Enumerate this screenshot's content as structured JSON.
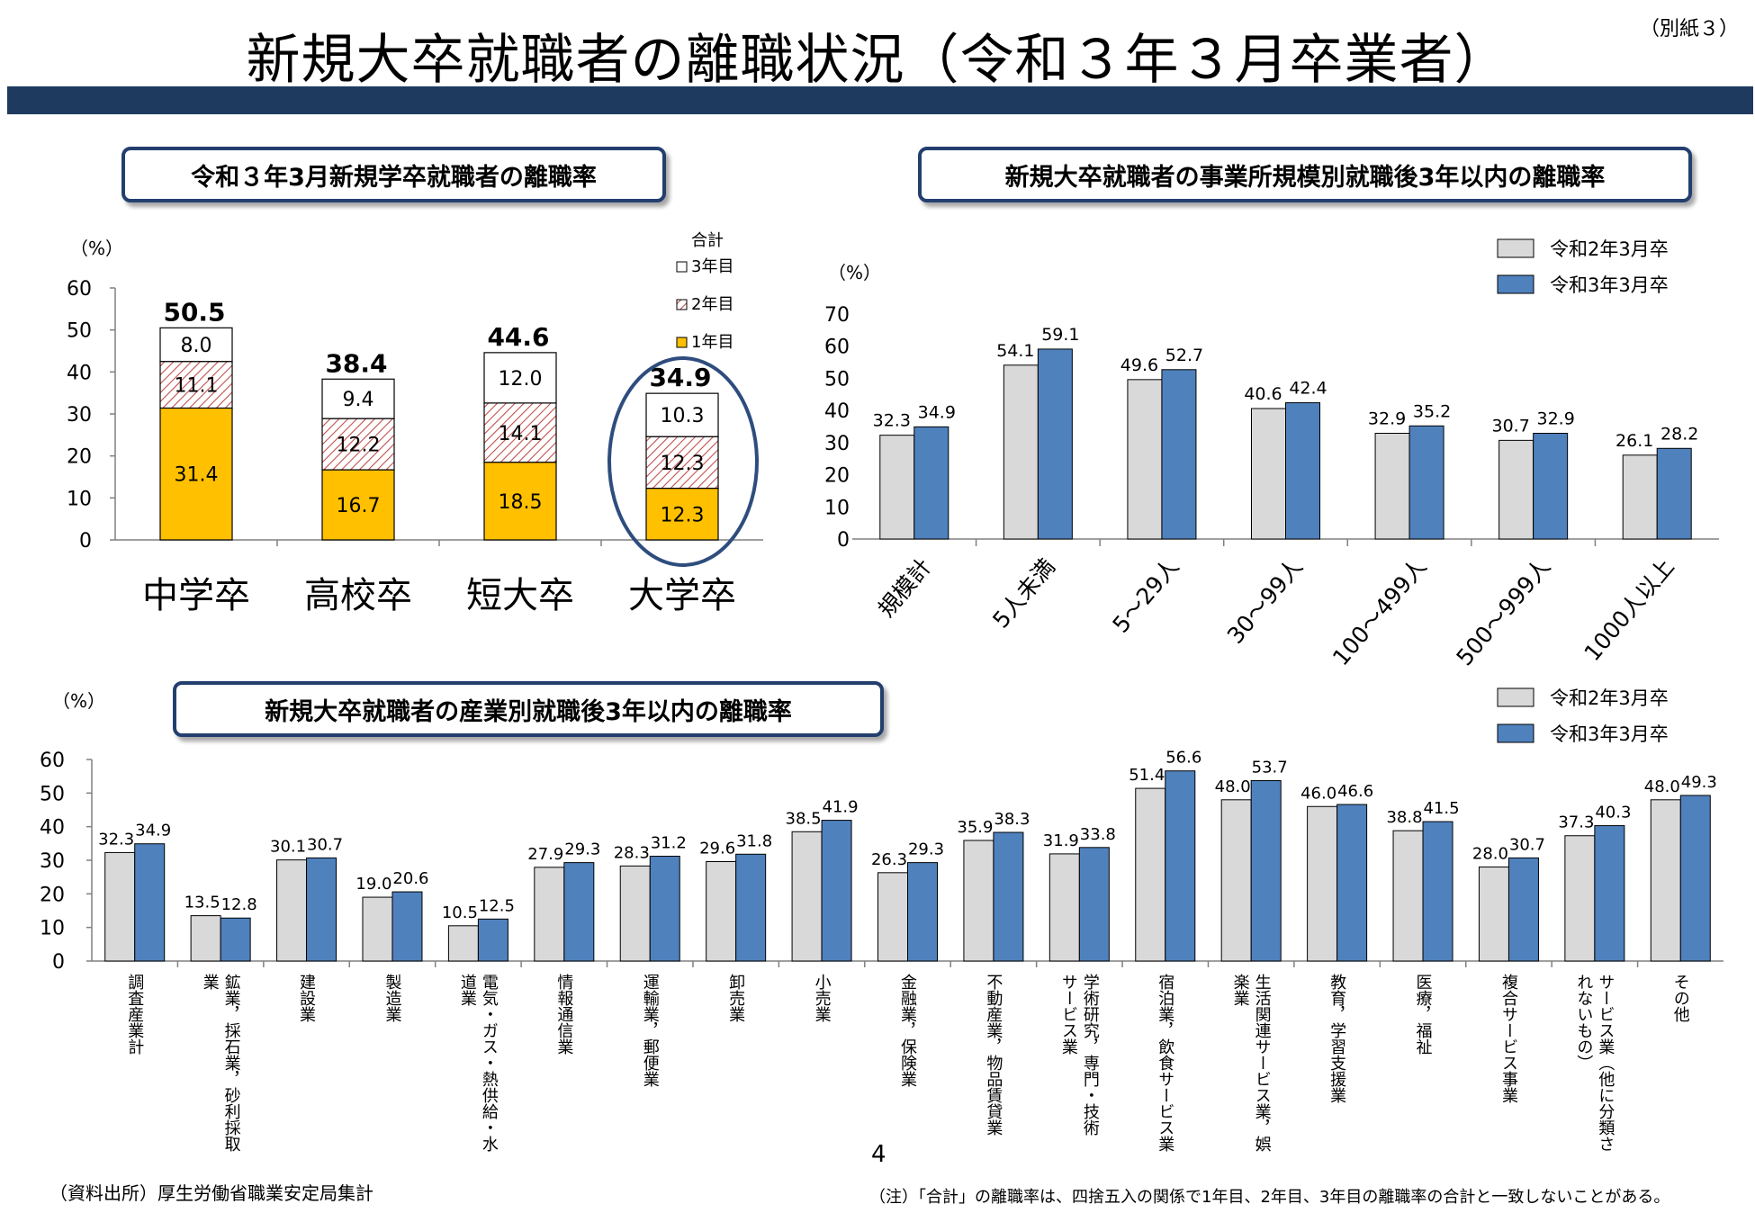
{
  "page": {
    "title": "新規大卒就職者の離職状況（令和３年３月卒業者）",
    "attachment_label": "（別紙３）",
    "page_number": "4",
    "source": "（資料出所）厚生労働省職業安定局集計",
    "note": "（注）「合計」の離職率は、四捨五入の関係で1年目、2年目、3年目の離職率の合計と一致しないことがある。"
  },
  "colors": {
    "header_bar": "#1f3a5f",
    "box_border": "#233f6e",
    "year1": "#FFC000",
    "year2_hatch": "#C0504D",
    "r2": "#D9D9D9",
    "r3": "#4F81BD",
    "highlight": "#2E4D7E"
  },
  "chart_data": [
    {
      "type": "bar",
      "stacked": true,
      "title": "令和３年3月新規学卒就職者の離職率",
      "ylabel": "（%）",
      "ylim": [
        0,
        60
      ],
      "yticks": [
        "0",
        "10",
        "20",
        "30",
        "40",
        "50",
        "60"
      ],
      "categories": [
        "中学卒",
        "高校卒",
        "短大卒",
        "大学卒"
      ],
      "legend_title": "合計",
      "series": [
        {
          "name": "1年目",
          "values": [
            31.4,
            16.7,
            18.5,
            12.3
          ]
        },
        {
          "name": "2年目",
          "values": [
            11.1,
            12.2,
            14.1,
            12.3
          ]
        },
        {
          "name": "3年目",
          "values": [
            8.0,
            9.4,
            12.0,
            10.3
          ]
        }
      ],
      "totals": [
        50.5,
        38.4,
        44.6,
        34.9
      ],
      "labels": {
        "y1": [
          "31.4",
          "16.7",
          "18.5",
          "12.3"
        ],
        "y2": [
          "11.1",
          "12.2",
          "14.1",
          "12.3"
        ],
        "y3": [
          "8.0",
          "9.4",
          "12.0",
          "10.3"
        ],
        "totals": [
          "50.5",
          "38.4",
          "44.6",
          "34.9"
        ]
      },
      "highlighted_category": "大学卒"
    },
    {
      "type": "bar",
      "title": "新規大卒就職者の事業所規模別就職後3年以内の離職率",
      "ylabel": "（%）",
      "ylim": [
        0,
        70
      ],
      "yticks": [
        "0",
        "10",
        "20",
        "30",
        "40",
        "50",
        "60",
        "70"
      ],
      "categories": [
        "規模計",
        "5人未満",
        "5～29人",
        "30～99人",
        "100～499人",
        "500～999人",
        "1000人以上"
      ],
      "series": [
        {
          "name": "令和2年3月卒",
          "values": [
            32.3,
            54.1,
            49.6,
            40.6,
            32.9,
            30.7,
            26.1
          ],
          "labels": [
            "32.3",
            "54.1",
            "49.6",
            "40.6",
            "32.9",
            "30.7",
            "26.1"
          ]
        },
        {
          "name": "令和3年3月卒",
          "values": [
            34.9,
            59.1,
            52.7,
            42.4,
            35.2,
            32.9,
            28.2
          ],
          "labels": [
            "34.9",
            "59.1",
            "52.7",
            "42.4",
            "35.2",
            "32.9",
            "28.2"
          ]
        }
      ]
    },
    {
      "type": "bar",
      "title": "新規大卒就職者の産業別就職後3年以内の離職率",
      "ylabel": "（%）",
      "ylim": [
        0,
        60
      ],
      "yticks": [
        "0",
        "10",
        "20",
        "30",
        "40",
        "50",
        "60"
      ],
      "categories": [
        "調査産業計",
        "鉱業，採石業，砂利採取業",
        "建設業",
        "製造業",
        "電気・ガス・熱供給・水道業",
        "情報通信業",
        "運輸業，郵便業",
        "卸売業",
        "小売業",
        "金融業，保険業",
        "不動産業，物品賃貸業",
        "学術研究，専門・技術サービス業",
        "宿泊業，飲食サービス業",
        "生活関連サービス業，娯楽業",
        "教育，学習支援業",
        "医療，福祉",
        "複合サービス事業",
        "サービス業（他に分類されないもの）",
        "その他"
      ],
      "category_lines": [
        [
          "調査産業計"
        ],
        [
          "鉱業，採石業，砂利採取",
          "業"
        ],
        [
          "建設業"
        ],
        [
          "製造業"
        ],
        [
          "電気・ガス・熱供給・水",
          "道業"
        ],
        [
          "情報通信業"
        ],
        [
          "運輸業，郵便業"
        ],
        [
          "卸売業"
        ],
        [
          "小売業"
        ],
        [
          "金融業，保険業"
        ],
        [
          "不動産業，物品賃貸業"
        ],
        [
          "学術研究，専門・技術",
          "サービス業"
        ],
        [
          "宿泊業，飲食サービス業"
        ],
        [
          "生活関連サービス業，娯",
          "楽業"
        ],
        [
          "教育，学習支援業"
        ],
        [
          "医療，福祉"
        ],
        [
          "複合サービス事業"
        ],
        [
          "サービス業（他に分類さ",
          "れないもの）"
        ],
        [
          "その他"
        ]
      ],
      "series": [
        {
          "name": "令和2年3月卒",
          "values": [
            32.3,
            13.5,
            30.1,
            19.0,
            10.5,
            27.9,
            28.3,
            29.6,
            38.5,
            26.3,
            35.9,
            31.9,
            51.4,
            48.0,
            46.0,
            38.8,
            28.0,
            37.3,
            48.0
          ],
          "labels": [
            "32.3",
            "13.5",
            "30.1",
            "19.0",
            "10.5",
            "27.9",
            "28.3",
            "29.6",
            "38.5",
            "26.3",
            "35.9",
            "31.9",
            "51.4",
            "48.0",
            "46.0",
            "38.8",
            "28.0",
            "37.3",
            "48.0"
          ]
        },
        {
          "name": "令和3年3月卒",
          "values": [
            34.9,
            12.8,
            30.7,
            20.6,
            12.5,
            29.3,
            31.2,
            31.8,
            41.9,
            29.3,
            38.3,
            33.8,
            56.6,
            53.7,
            46.6,
            41.5,
            30.7,
            40.3,
            49.3
          ],
          "labels": [
            "34.9",
            "12.8",
            "30.7",
            "20.6",
            "12.5",
            "29.3",
            "31.2",
            "31.8",
            "41.9",
            "29.3",
            "38.3",
            "33.8",
            "56.6",
            "53.7",
            "46.6",
            "41.5",
            "30.7",
            "40.3",
            "49.3"
          ]
        }
      ]
    }
  ]
}
